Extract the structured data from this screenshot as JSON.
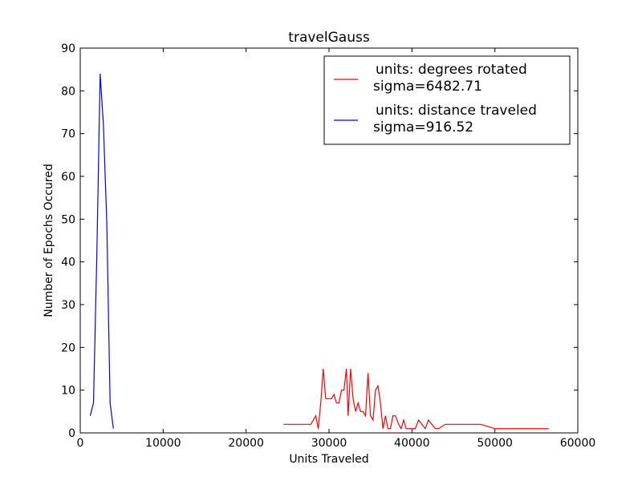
{
  "chart_data": {
    "type": "line",
    "title": "travelGauss",
    "xlabel": "Units Traveled",
    "ylabel": "Number of Epochs Occured",
    "xlim": [
      0,
      60000
    ],
    "ylim": [
      0,
      90
    ],
    "xticks": [
      0,
      10000,
      20000,
      30000,
      40000,
      50000,
      60000
    ],
    "yticks": [
      0,
      10,
      20,
      30,
      40,
      50,
      60,
      70,
      80,
      90
    ],
    "xtick_labels": [
      "0",
      "10000",
      "20000",
      "30000",
      "40000",
      "50000",
      "60000"
    ],
    "ytick_labels": [
      "0",
      "10",
      "20",
      "30",
      "40",
      "50",
      "60",
      "70",
      "80",
      "90"
    ],
    "grid": false,
    "legend_position": "top-right",
    "series": [
      {
        "name": "units: degrees rotated\nsigma=6482.71",
        "legend_lines": [
          "units: degrees rotated",
          "sigma=6482.71"
        ],
        "color": "#ff0000",
        "x": [
          24500,
          27800,
          28400,
          28700,
          29000,
          29300,
          29600,
          30000,
          30300,
          30600,
          30900,
          31200,
          31500,
          31800,
          32100,
          32300,
          32600,
          32900,
          33200,
          33500,
          33800,
          34100,
          34400,
          34700,
          35000,
          35300,
          35600,
          35900,
          36200,
          36500,
          36800,
          37100,
          37400,
          37700,
          38000,
          38400,
          38700,
          39000,
          39300,
          39600,
          40000,
          40400,
          40800,
          41200,
          41600,
          42000,
          42400,
          42800,
          43200,
          44000,
          46000,
          48300,
          50000,
          52000,
          54000,
          56500
        ],
        "y": [
          2,
          2,
          4,
          1,
          7,
          15,
          8,
          8,
          8,
          9,
          7,
          7,
          10,
          10,
          15,
          4,
          15,
          8,
          5,
          7,
          5,
          5,
          4,
          14,
          4,
          3,
          10,
          11,
          7,
          1,
          4,
          1,
          1,
          4,
          4,
          2,
          1,
          3,
          1,
          1,
          1,
          1,
          3,
          2,
          1,
          3,
          2,
          1,
          1,
          2,
          2,
          2,
          1,
          1,
          1,
          1
        ]
      },
      {
        "name": "units: distance traveled\nsigma=916.52",
        "legend_lines": [
          "units: distance traveled",
          "sigma=916.52"
        ],
        "color": "#0000ff",
        "x": [
          1200,
          1600,
          2000,
          2400,
          2800,
          3200,
          3600,
          4000
        ],
        "y": [
          4,
          7,
          42,
          84,
          72,
          49,
          7,
          1
        ]
      }
    ]
  }
}
